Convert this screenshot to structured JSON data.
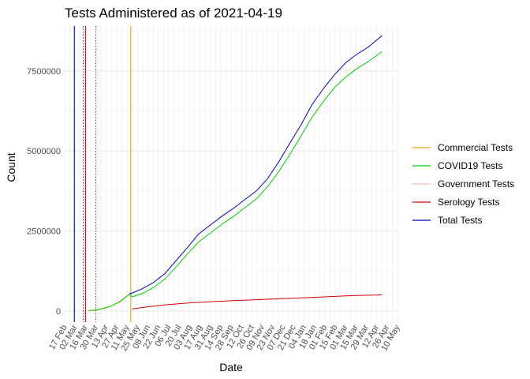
{
  "chart_data": {
    "type": "line",
    "title": "Tests Administered as of 2021-04-19",
    "xlabel": "Date",
    "ylabel": "Count",
    "x_range": [
      "2020-02-17",
      "2021-05-10"
    ],
    "ylim": [
      -350000,
      8900000
    ],
    "yticks": [
      0,
      2500000,
      5000000,
      7500000
    ],
    "ytick_labels": [
      "0",
      "2500000",
      "5000000",
      "7500000"
    ],
    "xtick_labels": [
      "17 Feb",
      "02 Mar",
      "16 Mar",
      "30 Mar",
      "13 Apr",
      "27 Apr",
      "11 May",
      "25 May",
      "08 Jun",
      "22 Jun",
      "06 Jul",
      "20 Jul",
      "03 Aug",
      "17 Aug",
      "31 Aug",
      "14 Sep",
      "28 Sep",
      "12 Oct",
      "26 Oct",
      "09 Nov",
      "23 Nov",
      "07 Dec",
      "21 Dec",
      "04 Jan",
      "18 Jan",
      "01 Feb",
      "15 Feb",
      "01 Mar",
      "15 Mar",
      "29 Mar",
      "12 Apr",
      "26 Apr",
      "10 May"
    ],
    "grid": true,
    "legend_position": "right",
    "series": [
      {
        "name": "Commercial Tests",
        "color": "#E6A817",
        "points": [
          [
            "2020-03-20",
            0
          ],
          [
            "2020-03-27",
            20000
          ],
          [
            "2020-04-03",
            45000
          ],
          [
            "2020-04-10",
            80000
          ],
          [
            "2020-04-17",
            130000
          ],
          [
            "2020-04-24",
            200000
          ],
          [
            "2020-05-01",
            300000
          ],
          [
            "2020-05-08",
            420000
          ],
          [
            "2020-05-14",
            520000
          ]
        ]
      },
      {
        "name": "COVID19 Tests",
        "color": "#00D400",
        "points": [
          [
            "2020-03-20",
            0
          ],
          [
            "2020-04-03",
            50000
          ],
          [
            "2020-04-17",
            130000
          ],
          [
            "2020-05-01",
            280000
          ],
          [
            "2020-05-14",
            520000
          ],
          [
            "2020-05-18",
            440000
          ],
          [
            "2020-06-01",
            550000
          ],
          [
            "2020-06-15",
            720000
          ],
          [
            "2020-07-01",
            1000000
          ],
          [
            "2020-07-15",
            1350000
          ],
          [
            "2020-08-01",
            1800000
          ],
          [
            "2020-08-15",
            2150000
          ],
          [
            "2020-09-01",
            2450000
          ],
          [
            "2020-09-15",
            2700000
          ],
          [
            "2020-10-01",
            2950000
          ],
          [
            "2020-10-15",
            3200000
          ],
          [
            "2020-11-01",
            3500000
          ],
          [
            "2020-11-15",
            3850000
          ],
          [
            "2020-12-01",
            4350000
          ],
          [
            "2020-12-15",
            4850000
          ],
          [
            "2021-01-01",
            5500000
          ],
          [
            "2021-01-15",
            6050000
          ],
          [
            "2021-02-01",
            6600000
          ],
          [
            "2021-02-15",
            7000000
          ],
          [
            "2021-03-01",
            7300000
          ],
          [
            "2021-03-15",
            7550000
          ],
          [
            "2021-04-01",
            7800000
          ],
          [
            "2021-04-19",
            8100000
          ]
        ]
      },
      {
        "name": "Government Tests",
        "color": "#FFB6C1",
        "points": []
      },
      {
        "name": "Serology Tests",
        "color": "#D40000",
        "points": [
          [
            "2020-05-18",
            60000
          ],
          [
            "2020-06-01",
            110000
          ],
          [
            "2020-07-01",
            190000
          ],
          [
            "2020-08-01",
            250000
          ],
          [
            "2020-09-01",
            290000
          ],
          [
            "2020-10-01",
            320000
          ],
          [
            "2020-11-01",
            350000
          ],
          [
            "2020-12-01",
            380000
          ],
          [
            "2021-01-01",
            410000
          ],
          [
            "2021-02-01",
            440000
          ],
          [
            "2021-03-01",
            470000
          ],
          [
            "2021-04-01",
            490000
          ],
          [
            "2021-04-19",
            500000
          ]
        ]
      },
      {
        "name": "Total Tests",
        "color": "#0000CC",
        "points": [
          [
            "2020-05-14",
            540000
          ],
          [
            "2020-05-18",
            560000
          ],
          [
            "2020-06-01",
            700000
          ],
          [
            "2020-06-15",
            880000
          ],
          [
            "2020-07-01",
            1170000
          ],
          [
            "2020-07-15",
            1550000
          ],
          [
            "2020-08-01",
            2000000
          ],
          [
            "2020-08-15",
            2400000
          ],
          [
            "2020-09-01",
            2700000
          ],
          [
            "2020-09-15",
            2950000
          ],
          [
            "2020-10-01",
            3200000
          ],
          [
            "2020-10-15",
            3450000
          ],
          [
            "2020-11-01",
            3750000
          ],
          [
            "2020-11-15",
            4100000
          ],
          [
            "2020-12-01",
            4650000
          ],
          [
            "2020-12-15",
            5200000
          ],
          [
            "2021-01-01",
            5850000
          ],
          [
            "2021-01-15",
            6450000
          ],
          [
            "2021-02-01",
            7000000
          ],
          [
            "2021-02-15",
            7400000
          ],
          [
            "2021-03-01",
            7750000
          ],
          [
            "2021-03-15",
            8000000
          ],
          [
            "2021-04-01",
            8250000
          ],
          [
            "2021-04-19",
            8600000
          ]
        ]
      }
    ],
    "vertical_lines": [
      {
        "date": "2020-03-01",
        "color": "#0000CC",
        "style": "solid"
      },
      {
        "date": "2020-03-13",
        "color": "#0000CC",
        "style": "dotted"
      },
      {
        "date": "2020-03-16",
        "color": "#D40000",
        "style": "solid"
      },
      {
        "date": "2020-03-30",
        "color": "#D40000",
        "style": "dotted"
      },
      {
        "date": "2020-05-16",
        "color": "#E6A817",
        "style": "solid"
      }
    ]
  }
}
